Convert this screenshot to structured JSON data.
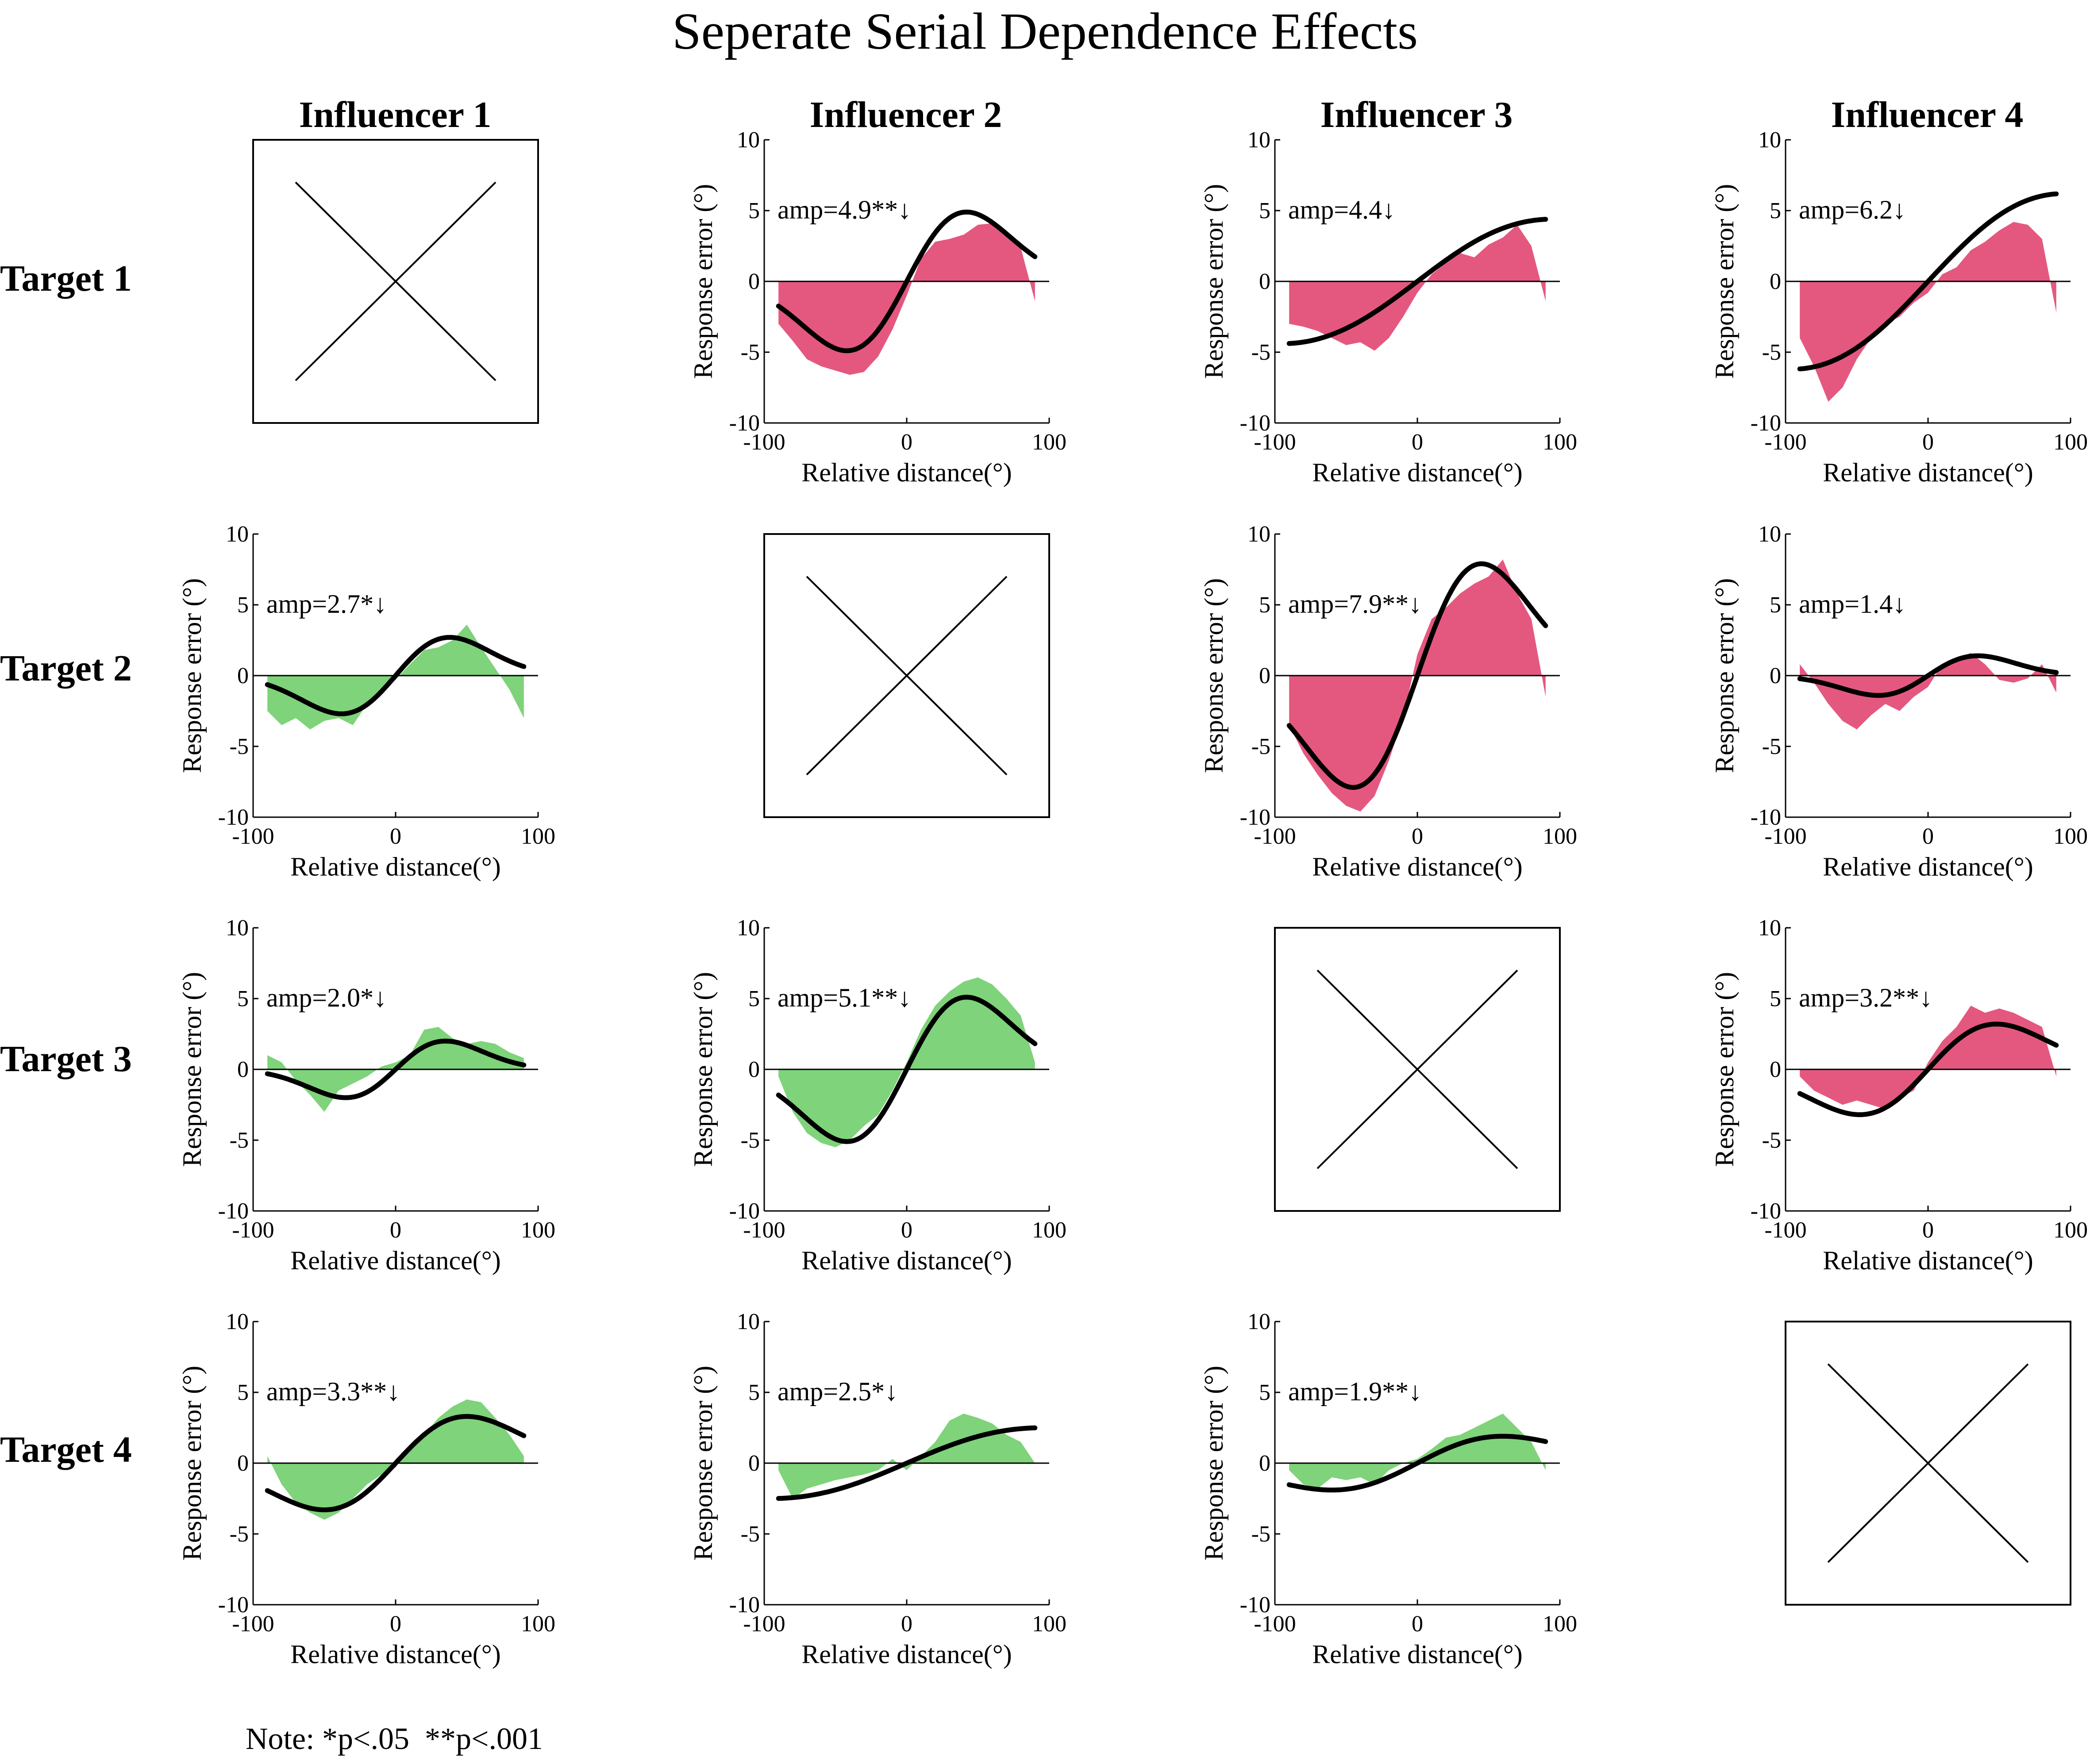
{
  "title": "Seperate Serial Dependence Effects",
  "note": "Note: *p<.05  **p<.001",
  "columns": [
    "Influencer 1",
    "Influencer 2",
    "Influencer 3",
    "Influencer 4"
  ],
  "rows": [
    "Target 1",
    "Target 2",
    "Target 3",
    "Target 4"
  ],
  "colors": {
    "attractive": "#e4587f",
    "repulsive": "#7fd37a",
    "fit": "#000000"
  },
  "chart_data": [
    {
      "type": "area",
      "panel": "Target 1 / Influencer 1",
      "empty": true
    },
    {
      "type": "area",
      "panel": "Target 1 / Influencer 2",
      "annotation": "amp=4.9**↓",
      "color": "#e4587f",
      "xlabel": "Relative distance(°)",
      "ylabel": "Response error (°)",
      "xlim": [
        -100,
        100
      ],
      "ylim": [
        -10,
        10
      ],
      "xticks": [
        "-100",
        "0",
        "100"
      ],
      "yticks": [
        "10",
        "5",
        "0",
        "-5",
        "-10"
      ],
      "fit_amplitude": 4.9,
      "fit_peak_x": 42,
      "x": [
        -90,
        -80,
        -70,
        -60,
        -50,
        -40,
        -30,
        -20,
        -10,
        0,
        10,
        20,
        30,
        40,
        50,
        60,
        70,
        80,
        90
      ],
      "y": [
        -3.0,
        -4.2,
        -5.5,
        -6.0,
        -6.3,
        -6.6,
        -6.4,
        -5.3,
        -3.4,
        -1.0,
        1.6,
        2.8,
        3.0,
        3.3,
        4.0,
        4.1,
        3.3,
        2.4,
        -1.4
      ]
    },
    {
      "type": "area",
      "panel": "Target 1 / Influencer 3",
      "annotation": "amp=4.4↓",
      "color": "#e4587f",
      "xlabel": "Relative distance(°)",
      "ylabel": "Response error (°)",
      "xlim": [
        -100,
        100
      ],
      "ylim": [
        -10,
        10
      ],
      "xticks": [
        "-100",
        "0",
        "100"
      ],
      "yticks": [
        "10",
        "5",
        "0",
        "-5",
        "-10"
      ],
      "fit_amplitude": 4.4,
      "fit_peak_x": 95,
      "x": [
        -90,
        -80,
        -70,
        -60,
        -50,
        -40,
        -30,
        -20,
        -10,
        0,
        10,
        20,
        30,
        40,
        50,
        60,
        70,
        80,
        90
      ],
      "y": [
        -3.0,
        -3.2,
        -3.5,
        -4.0,
        -4.5,
        -4.3,
        -4.9,
        -4.0,
        -2.5,
        -0.8,
        0.5,
        1.3,
        2.0,
        1.7,
        2.6,
        3.1,
        4.0,
        2.5,
        -1.4
      ]
    },
    {
      "type": "area",
      "panel": "Target 1 / Influencer 4",
      "annotation": "amp=6.2↓",
      "color": "#e4587f",
      "xlabel": "Relative distance(°)",
      "ylabel": "Response error (°)",
      "xlim": [
        -100,
        100
      ],
      "ylim": [
        -10,
        10
      ],
      "xticks": [
        "-100",
        "0",
        "100"
      ],
      "yticks": [
        "10",
        "5",
        "0",
        "-5",
        "-10"
      ],
      "fit_amplitude": 6.2,
      "fit_peak_x": 95,
      "x": [
        -90,
        -80,
        -70,
        -60,
        -50,
        -40,
        -30,
        -20,
        -10,
        0,
        10,
        20,
        30,
        40,
        50,
        60,
        70,
        80,
        90
      ],
      "y": [
        -4.0,
        -6.0,
        -8.5,
        -7.5,
        -5.5,
        -4.0,
        -3.0,
        -2.5,
        -1.5,
        -0.8,
        0.5,
        1.0,
        2.2,
        2.8,
        3.6,
        4.2,
        4.0,
        3.0,
        -2.2
      ]
    },
    {
      "type": "area",
      "panel": "Target 2 / Influencer 1",
      "annotation": "amp=2.7*↓",
      "color": "#7fd37a",
      "xlabel": "Relative distance(°)",
      "ylabel": "Response error (°)",
      "xlim": [
        -100,
        100
      ],
      "ylim": [
        -10,
        10
      ],
      "xticks": [
        "-100",
        "0",
        "100"
      ],
      "yticks": [
        "10",
        "5",
        "0",
        "-5",
        "-10"
      ],
      "fit_amplitude": 2.7,
      "fit_peak_x": 38,
      "x": [
        -90,
        -80,
        -70,
        -60,
        -50,
        -40,
        -30,
        -20,
        -10,
        0,
        10,
        20,
        30,
        40,
        50,
        60,
        70,
        80,
        90
      ],
      "y": [
        -2.5,
        -3.5,
        -3.0,
        -3.8,
        -3.2,
        -3.0,
        -3.5,
        -2.0,
        -1.0,
        -0.3,
        0.8,
        1.8,
        2.0,
        2.5,
        3.6,
        2.0,
        0.5,
        -1.0,
        -3.0
      ]
    },
    {
      "type": "area",
      "panel": "Target 2 / Influencer 2",
      "empty": true
    },
    {
      "type": "area",
      "panel": "Target 2 / Influencer 3",
      "annotation": "amp=7.9**↓",
      "color": "#e4587f",
      "xlabel": "Relative distance(°)",
      "ylabel": "Response error (°)",
      "xlim": [
        -100,
        100
      ],
      "ylim": [
        -10,
        10
      ],
      "xticks": [
        "-100",
        "0",
        "100"
      ],
      "yticks": [
        "10",
        "5",
        "0",
        "-5",
        "-10"
      ],
      "fit_amplitude": 7.9,
      "fit_peak_x": 45,
      "x": [
        -90,
        -80,
        -70,
        -60,
        -50,
        -40,
        -30,
        -20,
        -10,
        0,
        10,
        20,
        30,
        40,
        50,
        60,
        70,
        80,
        90
      ],
      "y": [
        -3.5,
        -5.5,
        -7.0,
        -8.3,
        -9.2,
        -9.6,
        -8.5,
        -6.0,
        -3.0,
        1.5,
        4.0,
        4.8,
        5.8,
        6.5,
        7.0,
        8.2,
        5.8,
        4.0,
        -1.5
      ]
    },
    {
      "type": "area",
      "panel": "Target 2 / Influencer 4",
      "annotation": "amp=1.4↓",
      "color": "#e4587f",
      "xlabel": "Relative distance(°)",
      "ylabel": "Response error (°)",
      "xlim": [
        -100,
        100
      ],
      "ylim": [
        -10,
        10
      ],
      "xticks": [
        "-100",
        "0",
        "100"
      ],
      "yticks": [
        "10",
        "5",
        "0",
        "-5",
        "-10"
      ],
      "fit_amplitude": 1.4,
      "fit_peak_x": 35,
      "x": [
        -90,
        -80,
        -70,
        -60,
        -50,
        -40,
        -30,
        -20,
        -10,
        0,
        10,
        20,
        30,
        40,
        50,
        60,
        70,
        80,
        90
      ],
      "y": [
        0.8,
        -0.5,
        -2.0,
        -3.2,
        -3.8,
        -2.8,
        -2.0,
        -2.5,
        -1.5,
        -0.8,
        0.8,
        1.2,
        1.6,
        0.8,
        -0.3,
        -0.5,
        -0.2,
        0.8,
        -1.2
      ]
    },
    {
      "type": "area",
      "panel": "Target 3 / Influencer 1",
      "annotation": "amp=2.0*↓",
      "color": "#7fd37a",
      "xlabel": "Relative distance(°)",
      "ylabel": "Response error (°)",
      "xlim": [
        -100,
        100
      ],
      "ylim": [
        -10,
        10
      ],
      "xticks": [
        "-100",
        "0",
        "100"
      ],
      "yticks": [
        "10",
        "5",
        "0",
        "-5",
        "-10"
      ],
      "fit_amplitude": 2.0,
      "fit_peak_x": 35,
      "x": [
        -90,
        -80,
        -70,
        -60,
        -50,
        -40,
        -30,
        -20,
        -10,
        0,
        10,
        20,
        30,
        40,
        50,
        60,
        70,
        80,
        90
      ],
      "y": [
        1.0,
        0.5,
        -0.8,
        -1.8,
        -3.0,
        -1.5,
        -1.0,
        -0.5,
        0.2,
        0.5,
        1.0,
        2.8,
        3.0,
        2.2,
        1.8,
        2.0,
        1.8,
        1.2,
        0.8
      ]
    },
    {
      "type": "area",
      "panel": "Target 3 / Influencer 2",
      "annotation": "amp=5.1**↓",
      "color": "#7fd37a",
      "xlabel": "Relative distance(°)",
      "ylabel": "Response error (°)",
      "xlim": [
        -100,
        100
      ],
      "ylim": [
        -10,
        10
      ],
      "xticks": [
        "-100",
        "0",
        "100"
      ],
      "yticks": [
        "10",
        "5",
        "0",
        "-5",
        "-10"
      ],
      "fit_amplitude": 5.1,
      "fit_peak_x": 42,
      "x": [
        -90,
        -80,
        -70,
        -60,
        -50,
        -40,
        -30,
        -20,
        -10,
        0,
        10,
        20,
        30,
        40,
        50,
        60,
        70,
        80,
        90
      ],
      "y": [
        -0.5,
        -3.0,
        -4.5,
        -5.2,
        -5.5,
        -5.0,
        -4.0,
        -3.2,
        -1.5,
        0.5,
        2.8,
        4.5,
        5.5,
        6.2,
        6.5,
        6.0,
        5.0,
        3.8,
        0.5
      ]
    },
    {
      "type": "area",
      "panel": "Target 3 / Influencer 3",
      "empty": true
    },
    {
      "type": "area",
      "panel": "Target 3 / Influencer 4",
      "annotation": "amp=3.2**↓",
      "color": "#e4587f",
      "xlabel": "Relative distance(°)",
      "ylabel": "Response error (°)",
      "xlim": [
        -100,
        100
      ],
      "ylim": [
        -10,
        10
      ],
      "xticks": [
        "-100",
        "0",
        "100"
      ],
      "yticks": [
        "10",
        "5",
        "0",
        "-5",
        "-10"
      ],
      "fit_amplitude": 3.2,
      "fit_peak_x": 48,
      "x": [
        -90,
        -80,
        -70,
        -60,
        -50,
        -40,
        -30,
        -20,
        -10,
        0,
        10,
        20,
        30,
        40,
        50,
        60,
        70,
        80,
        90
      ],
      "y": [
        -0.5,
        -1.5,
        -2.0,
        -2.5,
        -2.2,
        -2.5,
        -2.8,
        -2.0,
        -1.5,
        0.5,
        2.0,
        3.0,
        4.5,
        4.0,
        4.3,
        4.0,
        3.5,
        3.0,
        -0.5
      ]
    },
    {
      "type": "area",
      "panel": "Target 4 / Influencer 1",
      "annotation": "amp=3.3**↓",
      "color": "#7fd37a",
      "xlabel": "Relative distance(°)",
      "ylabel": "Response error (°)",
      "xlim": [
        -100,
        100
      ],
      "ylim": [
        -10,
        10
      ],
      "xticks": [
        "-100",
        "0",
        "100"
      ],
      "yticks": [
        "10",
        "5",
        "0",
        "-5",
        "-10"
      ],
      "fit_amplitude": 3.3,
      "fit_peak_x": 50,
      "x": [
        -90,
        -80,
        -70,
        -60,
        -50,
        -40,
        -30,
        -20,
        -10,
        0,
        10,
        20,
        30,
        40,
        50,
        60,
        70,
        80,
        90
      ],
      "y": [
        0.5,
        -1.5,
        -2.8,
        -3.5,
        -4.0,
        -3.5,
        -2.5,
        -1.5,
        -0.8,
        -0.3,
        1.0,
        2.0,
        3.2,
        4.0,
        4.5,
        4.3,
        3.2,
        2.0,
        0.5
      ]
    },
    {
      "type": "area",
      "panel": "Target 4 / Influencer 2",
      "annotation": "amp=2.5*↓",
      "color": "#7fd37a",
      "xlabel": "Relative distance(°)",
      "ylabel": "Response error (°)",
      "xlim": [
        -100,
        100
      ],
      "ylim": [
        -10,
        10
      ],
      "xticks": [
        "-100",
        "0",
        "100"
      ],
      "yticks": [
        "10",
        "5",
        "0",
        "-5",
        "-10"
      ],
      "fit_amplitude": 2.5,
      "fit_peak_x": 95,
      "x": [
        -90,
        -80,
        -70,
        -60,
        -50,
        -40,
        -30,
        -20,
        -10,
        0,
        10,
        20,
        30,
        40,
        50,
        60,
        70,
        80,
        90
      ],
      "y": [
        -0.5,
        -2.5,
        -1.8,
        -1.5,
        -1.2,
        -1.0,
        -0.8,
        -0.5,
        0.3,
        -0.5,
        0.5,
        1.5,
        3.0,
        3.5,
        3.2,
        2.8,
        2.0,
        1.5,
        0.0
      ]
    },
    {
      "type": "area",
      "panel": "Target 4 / Influencer 3",
      "annotation": "amp=1.9**↓",
      "color": "#7fd37a",
      "xlabel": "Relative distance(°)",
      "ylabel": "Response error (°)",
      "xlim": [
        -100,
        100
      ],
      "ylim": [
        -10,
        10
      ],
      "xticks": [
        "-100",
        "0",
        "100"
      ],
      "yticks": [
        "10",
        "5",
        "0",
        "-5",
        "-10"
      ],
      "fit_amplitude": 1.9,
      "fit_peak_x": 60,
      "x": [
        -90,
        -80,
        -70,
        -60,
        -50,
        -40,
        -30,
        -20,
        -10,
        0,
        10,
        20,
        30,
        40,
        50,
        60,
        70,
        80,
        90
      ],
      "y": [
        -0.5,
        -1.5,
        -1.8,
        -1.0,
        -1.2,
        -1.0,
        -1.5,
        -0.5,
        0.0,
        0.3,
        1.0,
        1.8,
        2.0,
        2.5,
        3.0,
        3.5,
        2.5,
        1.5,
        -0.5
      ]
    },
    {
      "type": "area",
      "panel": "Target 4 / Influencer 4",
      "empty": true
    }
  ]
}
